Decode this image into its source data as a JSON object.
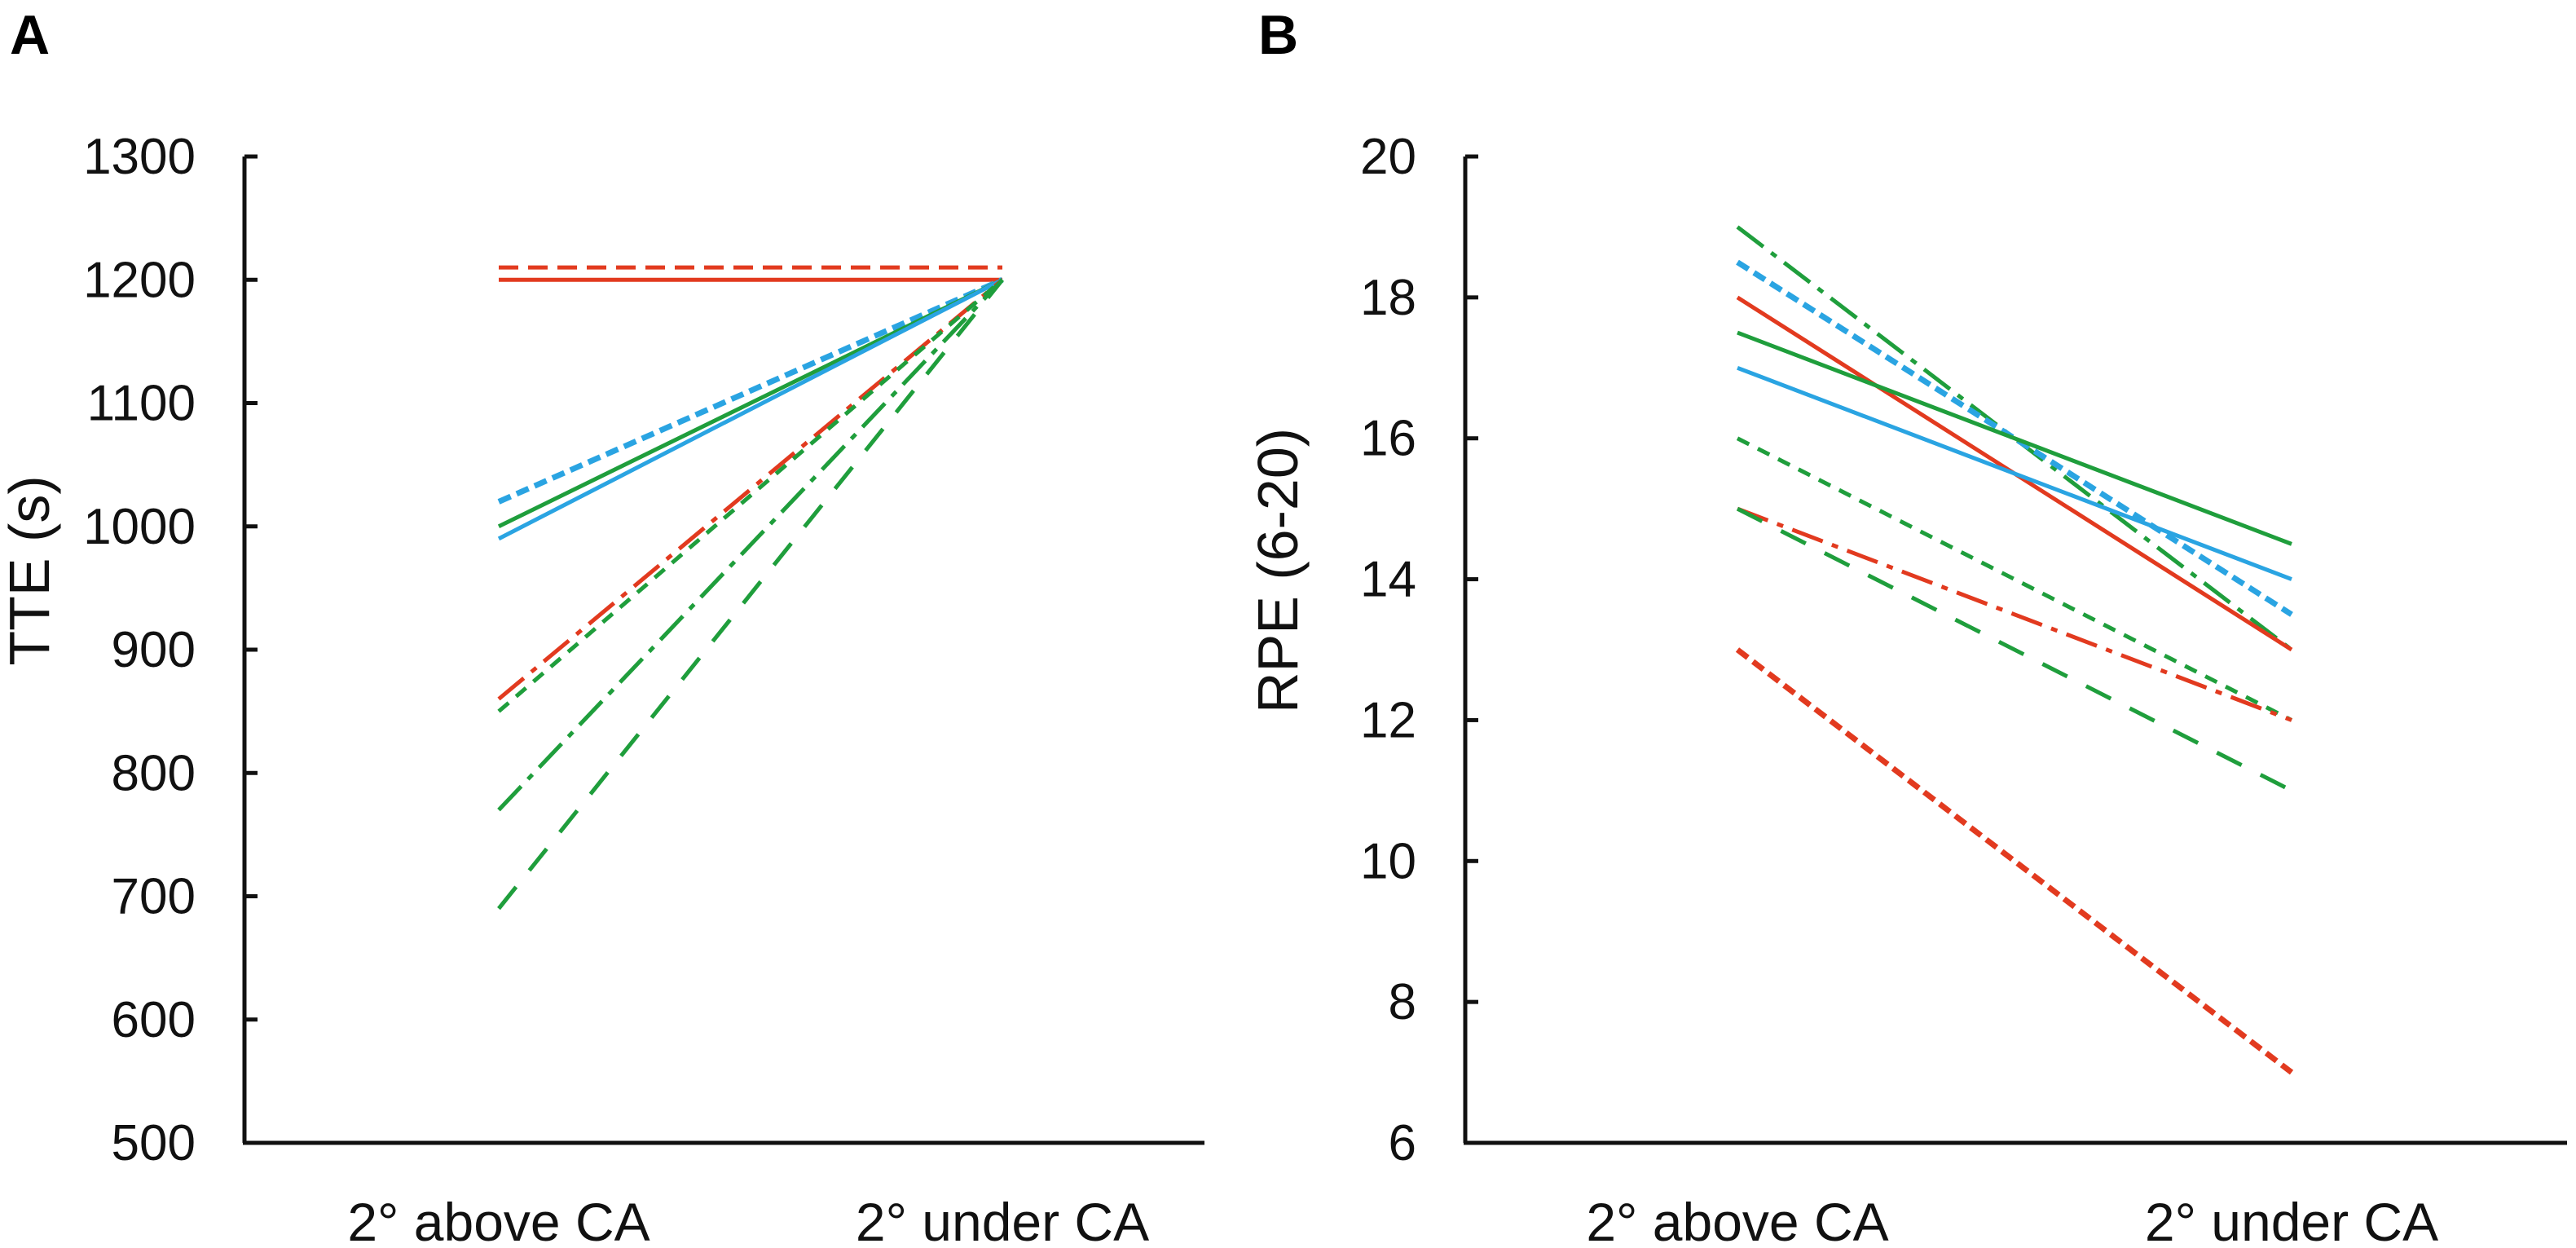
{
  "colors": {
    "red": "#e23a1f",
    "green": "#1f9e3c",
    "blue": "#2aa4e2",
    "axis": "#111111"
  },
  "chart_data": [
    {
      "panel": "A",
      "type": "line",
      "xlabel": "",
      "ylabel": "TTE (s)",
      "categories": [
        "2° above CA",
        "2°  under CA"
      ],
      "ylim": [
        500,
        1300
      ],
      "yticks": [
        500,
        600,
        700,
        800,
        900,
        1000,
        1100,
        1200,
        1300
      ],
      "series": [
        {
          "name": "red dashed",
          "color": "red",
          "dash": "dashed",
          "values": [
            1210,
            1210
          ]
        },
        {
          "name": "red solid",
          "color": "red",
          "dash": "solid",
          "values": [
            1200,
            1200
          ]
        },
        {
          "name": "blue dashed",
          "color": "blue",
          "dash": "dashed-thick",
          "values": [
            1020,
            1200
          ]
        },
        {
          "name": "green solid",
          "color": "green",
          "dash": "solid",
          "values": [
            1000,
            1200
          ]
        },
        {
          "name": "blue solid",
          "color": "blue",
          "dash": "solid",
          "values": [
            990,
            1200
          ]
        },
        {
          "name": "red dash-dot",
          "color": "red",
          "dash": "dashdot",
          "values": [
            860,
            1200
          ]
        },
        {
          "name": "green dotted",
          "color": "green",
          "dash": "dotted",
          "values": [
            850,
            1200
          ]
        },
        {
          "name": "green dash-dot",
          "color": "green",
          "dash": "dashdot",
          "values": [
            770,
            1200
          ]
        },
        {
          "name": "green long-dash",
          "color": "green",
          "dash": "longdash",
          "values": [
            690,
            1200
          ]
        }
      ]
    },
    {
      "panel": "B",
      "type": "line",
      "xlabel": "",
      "ylabel": "RPE (6-20)",
      "categories": [
        "2° above CA",
        "2°  under CA"
      ],
      "ylim": [
        6,
        20
      ],
      "yticks": [
        6,
        8,
        10,
        12,
        14,
        16,
        18,
        20
      ],
      "series": [
        {
          "name": "green dash-dot",
          "color": "green",
          "dash": "dashdot",
          "values": [
            19,
            13
          ]
        },
        {
          "name": "blue dashed",
          "color": "blue",
          "dash": "dashed-thick",
          "values": [
            18.5,
            13.5
          ]
        },
        {
          "name": "red solid",
          "color": "red",
          "dash": "solid",
          "values": [
            18,
            13
          ]
        },
        {
          "name": "green solid",
          "color": "green",
          "dash": "solid",
          "values": [
            17.5,
            14.5
          ]
        },
        {
          "name": "blue solid",
          "color": "blue",
          "dash": "solid",
          "values": [
            17,
            14
          ]
        },
        {
          "name": "green dotted",
          "color": "green",
          "dash": "dotted",
          "values": [
            16,
            12
          ]
        },
        {
          "name": "red dash-dot",
          "color": "red",
          "dash": "dashdot",
          "values": [
            15,
            12
          ]
        },
        {
          "name": "green long-dash",
          "color": "green",
          "dash": "longdash",
          "values": [
            15,
            11
          ]
        },
        {
          "name": "red dashed",
          "color": "red",
          "dash": "dashed-thick",
          "values": [
            13,
            7
          ]
        }
      ]
    }
  ]
}
